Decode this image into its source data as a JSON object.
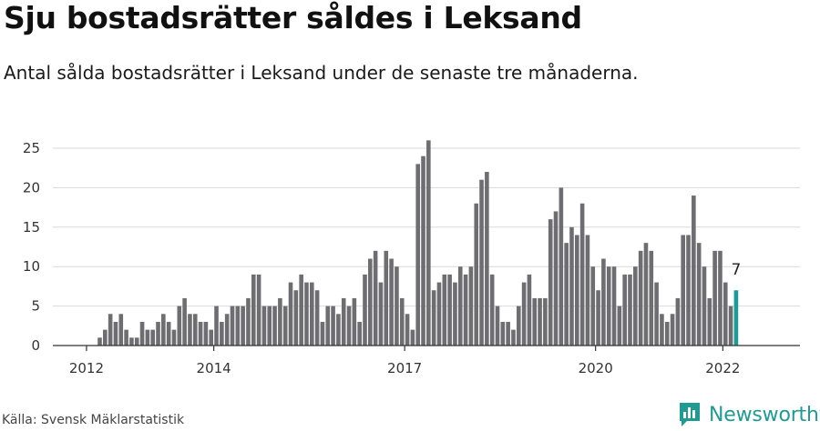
{
  "header": {
    "title": "Sju bostadsrätter såldes i Leksand",
    "subtitle": "Antal sålda bostadsrätter i Leksand under de senaste tre månaderna."
  },
  "footer": {
    "source": "Källa: Svensk Mäklarstatistik",
    "brand": "Newsworthy",
    "brand_icon": "newsworthy-logo-icon"
  },
  "colors": {
    "bar": "#6e6d72",
    "highlight": "#1a9b95",
    "grid": "#d9d9d9",
    "axis": "#333333",
    "brand": "#1f9b93"
  },
  "chart_data": {
    "type": "bar",
    "title": "Sju bostadsrätter såldes i Leksand",
    "xlabel": "",
    "ylabel": "",
    "ylim": [
      0,
      25
    ],
    "yticks": [
      0,
      5,
      10,
      15,
      20,
      25
    ],
    "xticks": [
      "2012",
      "2014",
      "2017",
      "2020",
      "2022"
    ],
    "grid": true,
    "legend": "none",
    "x_first": "2012-03",
    "x_step": "1 month",
    "highlight_label": "7",
    "values": [
      1,
      2,
      4,
      3,
      4,
      2,
      1,
      1,
      3,
      2,
      2,
      3,
      4,
      3,
      2,
      5,
      6,
      4,
      4,
      3,
      3,
      2,
      5,
      3,
      4,
      5,
      5,
      5,
      6,
      9,
      9,
      5,
      5,
      5,
      6,
      5,
      8,
      7,
      9,
      8,
      8,
      7,
      3,
      5,
      5,
      4,
      6,
      5,
      6,
      3,
      9,
      11,
      12,
      8,
      12,
      11,
      10,
      6,
      4,
      2,
      23,
      24,
      26,
      7,
      8,
      9,
      9,
      8,
      10,
      9,
      10,
      18,
      21,
      22,
      9,
      5,
      3,
      3,
      2,
      5,
      8,
      9,
      6,
      6,
      6,
      16,
      17,
      20,
      13,
      15,
      14,
      18,
      14,
      10,
      7,
      11,
      10,
      10,
      5,
      9,
      9,
      10,
      12,
      13,
      12,
      8,
      4,
      3,
      4,
      6,
      14,
      14,
      19,
      13,
      10,
      6,
      12,
      12,
      8,
      5,
      7
    ]
  }
}
